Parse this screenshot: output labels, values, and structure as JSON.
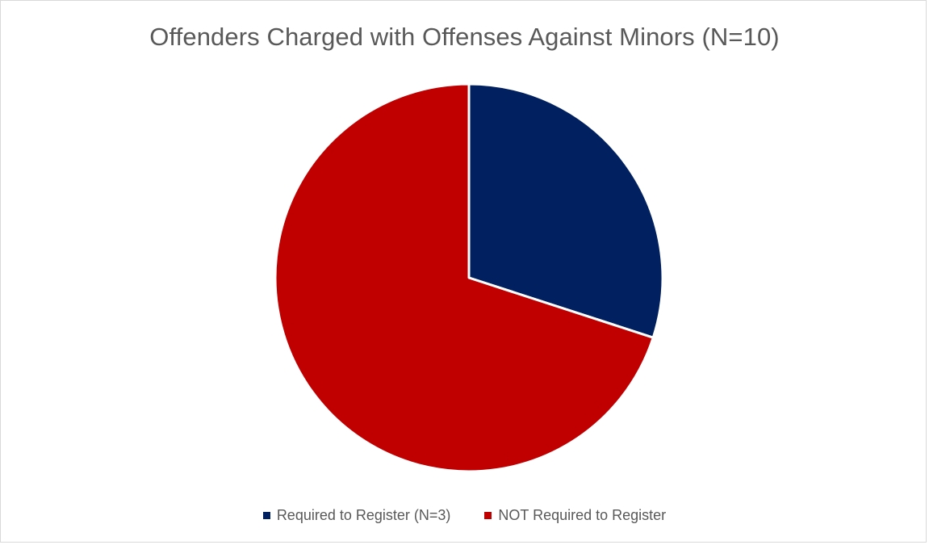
{
  "chart_data": {
    "type": "pie",
    "title": "Offenders Charged with Offenses Against Minors (N=10)",
    "slices": [
      {
        "label": "Required to Register (N=3)",
        "value": 3,
        "color": "#002060"
      },
      {
        "label": "NOT Required to Register",
        "value": 7,
        "color": "#c00000"
      }
    ],
    "start_angle_deg": 0,
    "direction": "clockwise",
    "legend_position": "bottom",
    "slice_border_color": "#ffffff"
  }
}
